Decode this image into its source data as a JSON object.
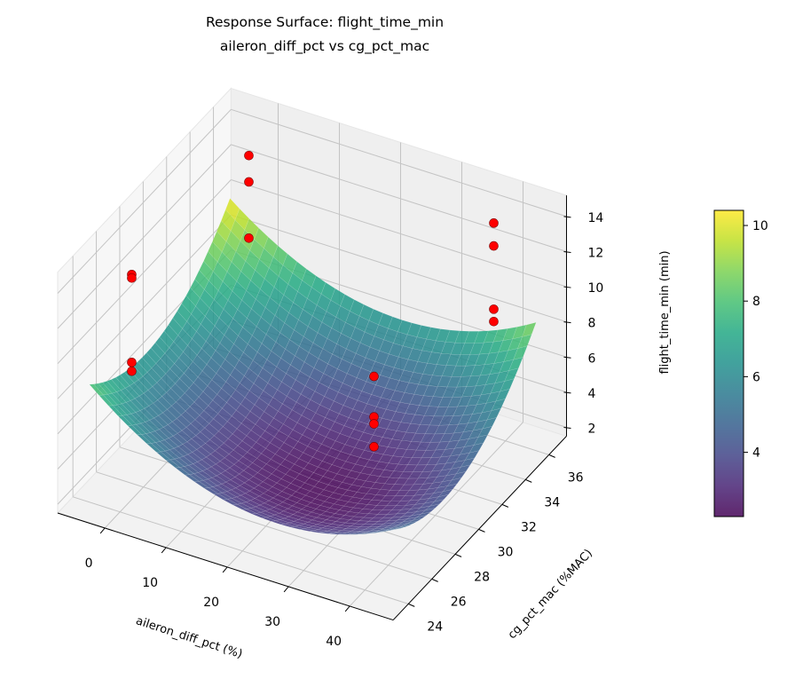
{
  "chart_data": {
    "type": "surface3d",
    "title": "Response Surface: flight_time_min",
    "subtitle": "aileron_diff_pct vs cg_pct_mac",
    "xlabel": "aileron_diff_pct (%)",
    "ylabel": "cg_pct_mac (%MAC)",
    "zlabel": "flight_time_min (min)",
    "xlim": [
      -7.7,
      47.1
    ],
    "ylim": [
      22.7,
      37.5
    ],
    "zlim": [
      1.5,
      15.2
    ],
    "xticks": [
      0,
      10,
      20,
      30,
      40
    ],
    "yticks": [
      24,
      26,
      28,
      30,
      32,
      34,
      36
    ],
    "zticks": [
      2,
      4,
      6,
      8,
      10,
      12,
      14
    ],
    "grid": true,
    "colormap": "viridis",
    "surface": {
      "x_range": [
        -5,
        45
      ],
      "y_range": [
        24,
        36
      ],
      "model": "z = 2.6 + 3.0u^2 + 2.6v^2 + 0.3uv - 1.05u + 1.35v, u=(x-20)/25, v=(y-30)/6",
      "corner_values": {
        "x-5_y24": 8.2,
        "x-5_y36": 10.3,
        "x45_y36": 8.8,
        "x45_y24": 5.5
      },
      "min_value": 2.3
    },
    "points": {
      "color": "#ff0000",
      "x": [
        0,
        0,
        0,
        0,
        0,
        0,
        0,
        40,
        40,
        40,
        40,
        30,
        30,
        30,
        30
      ],
      "y": [
        25,
        25,
        25,
        25,
        35,
        35,
        35,
        35,
        35,
        35,
        35,
        30,
        30,
        30,
        30
      ],
      "z": [
        14.3,
        14.1,
        9.3,
        8.8,
        14.0,
        12.5,
        9.3,
        14.6,
        13.3,
        9.7,
        9.0,
        8.3,
        6.0,
        5.6,
        4.3
      ]
    },
    "colorbar": {
      "range": [
        2.3,
        10.4
      ],
      "ticks": [
        4,
        6,
        8,
        10
      ]
    }
  }
}
